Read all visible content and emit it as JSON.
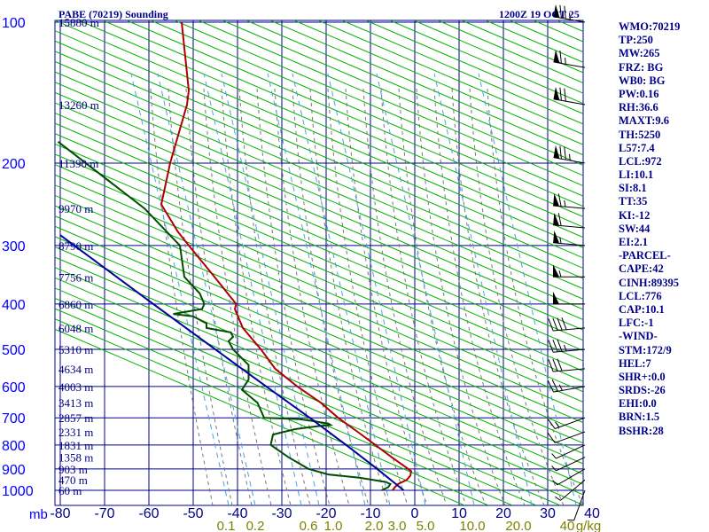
{
  "header": {
    "station": "PABE (70219) Sounding",
    "datetime": "1200Z 19 OCT 25"
  },
  "indices": [
    "WMO:70219",
    "TP:250",
    "MW:265",
    "FRZ: BG",
    "WB0: BG",
    "PW:0.16",
    "RH:36.6",
    "MAXT:9.6",
    "TH:5250",
    "L57:7.4",
    "LCL:972",
    "LI:10.1",
    "SI:8.1",
    "TT:35",
    "KI:-12",
    "SW:44",
    "EI:2.1",
    "-PARCEL-",
    "CAPE:42",
    "CINH:89395",
    "LCL:776",
    "CAP:10.1",
    "LFC:-1",
    "-WIND-",
    "STM:172/9",
    "HEL:7",
    "SHR+:0.0",
    "SRDS:-26",
    "EHI:0.0",
    "BRN:1.5",
    "BSHR:28"
  ],
  "chart_data": {
    "type": "line",
    "title": "PABE (70219) Sounding",
    "subtitle": "1200Z 19 OCT 25",
    "xlabel": "",
    "ylabel": "mb",
    "pressure_ticks": [
      100,
      200,
      300,
      400,
      500,
      600,
      700,
      800,
      900,
      1000
    ],
    "pressure_tick_labels": [
      "100",
      "200",
      "300",
      "400",
      "500",
      "600",
      "700",
      "800",
      "900",
      "1000"
    ],
    "y_unit_label": "mb",
    "temperature_ticks": [
      -80,
      -70,
      -60,
      -50,
      -40,
      -30,
      -20,
      -10,
      0,
      10,
      20,
      30,
      40
    ],
    "temperature_tick_labels": [
      "-80",
      "-70",
      "-60",
      "-50",
      "-40",
      "-30",
      "-20",
      "-10",
      "0",
      "10",
      "20",
      "30",
      "40"
    ],
    "mixing_ratio_labels": [
      "0.1",
      "0.2",
      "0.6",
      "1.0",
      "2.0",
      "3.0",
      "5.0",
      "10.0",
      "20.0",
      "40",
      "g/kg"
    ],
    "height_labels": [
      {
        "p": 100,
        "label": "15880 m"
      },
      {
        "p": 150,
        "label": "13260 m"
      },
      {
        "p": 200,
        "label": "11390 m"
      },
      {
        "p": 250,
        "label": "9970 m"
      },
      {
        "p": 300,
        "label": "8790 m"
      },
      {
        "p": 350,
        "label": "7756 m"
      },
      {
        "p": 400,
        "label": "6860 m"
      },
      {
        "p": 450,
        "label": "6048 m"
      },
      {
        "p": 500,
        "label": "5310 m"
      },
      {
        "p": 550,
        "label": "4634 m"
      },
      {
        "p": 600,
        "label": "4003 m"
      },
      {
        "p": 650,
        "label": "3413 m"
      },
      {
        "p": 700,
        "label": "2857 m"
      },
      {
        "p": 750,
        "label": "2331 m"
      },
      {
        "p": 800,
        "label": "1831 m"
      },
      {
        "p": 850,
        "label": "1358 m"
      },
      {
        "p": 900,
        "label": "903 m"
      },
      {
        "p": 950,
        "label": "470 m"
      },
      {
        "p": 1000,
        "label": "60 m"
      }
    ],
    "series": [
      {
        "name": "",
        "color": "#b00000",
        "points": [
          [
            100,
            -52.6
          ],
          [
            140,
            -51.0
          ],
          [
            150,
            -51.4
          ],
          [
            200,
            -55.2
          ],
          [
            245,
            -57.2
          ],
          [
            280,
            -53.5
          ],
          [
            300,
            -51.0
          ],
          [
            350,
            -45.2
          ],
          [
            400,
            -40.3
          ],
          [
            410,
            -40.6
          ],
          [
            450,
            -38.8
          ],
          [
            500,
            -34.7
          ],
          [
            550,
            -31.5
          ],
          [
            600,
            -26.5
          ],
          [
            650,
            -21.2
          ],
          [
            700,
            -17.3
          ],
          [
            750,
            -12.9
          ],
          [
            800,
            -8.9
          ],
          [
            850,
            -5.2
          ],
          [
            900,
            -1.5
          ],
          [
            910,
            -0.8
          ],
          [
            930,
            -1.0
          ],
          [
            950,
            -1.8
          ],
          [
            970,
            -3.8
          ],
          [
            985,
            -4.5
          ],
          [
            1000,
            -5.0
          ]
        ]
      },
      {
        "name": "",
        "color": "#004d00",
        "points": [
          [
            180,
            -80.5
          ],
          [
            250,
            -61.0
          ],
          [
            300,
            -53.0
          ],
          [
            350,
            -52.0
          ],
          [
            380,
            -48.5
          ],
          [
            400,
            -47.5
          ],
          [
            410,
            -48.0
          ],
          [
            420,
            -54.5
          ],
          [
            425,
            -50.0
          ],
          [
            440,
            -47.0
          ],
          [
            450,
            -47.0
          ],
          [
            460,
            -41.5
          ],
          [
            470,
            -41.0
          ],
          [
            480,
            -42.0
          ],
          [
            500,
            -41.0
          ],
          [
            540,
            -37.5
          ],
          [
            580,
            -37.5
          ],
          [
            610,
            -39.0
          ],
          [
            650,
            -35.5
          ],
          [
            700,
            -34.0
          ],
          [
            705,
            -26.0
          ],
          [
            710,
            -23.5
          ],
          [
            720,
            -19.5
          ],
          [
            725,
            -19.0
          ],
          [
            730,
            -22.0
          ],
          [
            740,
            -27.0
          ],
          [
            760,
            -32.0
          ],
          [
            800,
            -32.5
          ],
          [
            850,
            -28.5
          ],
          [
            900,
            -24.0
          ],
          [
            925,
            -19.5
          ],
          [
            940,
            -12.5
          ],
          [
            960,
            -6.5
          ],
          [
            970,
            -5.5
          ],
          [
            985,
            -6.0
          ],
          [
            1000,
            -7.5
          ]
        ]
      },
      {
        "name": "",
        "color": "#0000a0",
        "points": [
          [
            285,
            -80.0
          ],
          [
            400,
            -59.0
          ],
          [
            500,
            -45.0
          ],
          [
            600,
            -33.5
          ],
          [
            700,
            -23.7
          ],
          [
            800,
            -15.5
          ],
          [
            900,
            -8.5
          ],
          [
            1000,
            -2.5
          ]
        ]
      }
    ],
    "wind_barbs": [
      {
        "p": 100,
        "dir": 280,
        "spd": 75
      },
      {
        "p": 125,
        "dir": 280,
        "spd": 65
      },
      {
        "p": 150,
        "dir": 280,
        "spd": 70
      },
      {
        "p": 200,
        "dir": 280,
        "spd": 75
      },
      {
        "p": 250,
        "dir": 275,
        "spd": 65
      },
      {
        "p": 275,
        "dir": 275,
        "spd": 60
      },
      {
        "p": 300,
        "dir": 275,
        "spd": 55
      },
      {
        "p": 350,
        "dir": 270,
        "spd": 55
      },
      {
        "p": 400,
        "dir": 270,
        "spd": 50
      },
      {
        "p": 450,
        "dir": 265,
        "spd": 40
      },
      {
        "p": 500,
        "dir": 265,
        "spd": 35
      },
      {
        "p": 550,
        "dir": 265,
        "spd": 30
      },
      {
        "p": 600,
        "dir": 260,
        "spd": 25
      },
      {
        "p": 700,
        "dir": 250,
        "spd": 15
      },
      {
        "p": 750,
        "dir": 250,
        "spd": 10
      },
      {
        "p": 800,
        "dir": 245,
        "spd": 5
      },
      {
        "p": 850,
        "dir": 245,
        "spd": 5
      },
      {
        "p": 900,
        "dir": 240,
        "spd": 5
      },
      {
        "p": 950,
        "dir": 230,
        "spd": 5
      },
      {
        "p": 1000,
        "dir": 200,
        "spd": 5
      }
    ],
    "grid": true,
    "colors": {
      "isobars": "#00008b",
      "isotherms": "#00008b",
      "dry_adiabats": "#00b000",
      "moist_adiabats": "#888888",
      "mixing_ratio": "#4aa3df",
      "wind_barbs": "#000000"
    }
  }
}
